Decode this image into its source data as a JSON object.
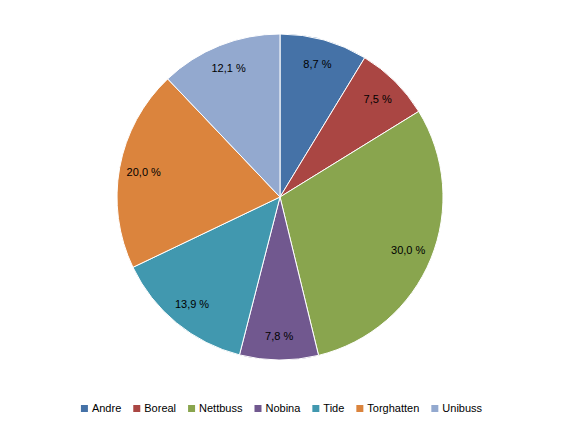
{
  "chart_data": {
    "type": "pie",
    "categories": [
      "Andre",
      "Boreal",
      "Nettbuss",
      "Nobina",
      "Tide",
      "Torghatten",
      "Unibuss"
    ],
    "values": [
      8.7,
      7.5,
      30.0,
      7.8,
      13.9,
      20.0,
      12.1
    ],
    "value_labels": [
      "8,7 %",
      "7,5 %",
      "30,0 %",
      "7,8 %",
      "13,9 %",
      "20,0 %",
      "12,1 %"
    ],
    "colors": [
      "#4572a7",
      "#aa4643",
      "#89a54e",
      "#71588f",
      "#4198af",
      "#db843d",
      "#93a9cf"
    ],
    "data_labels": true,
    "legend": "bottom"
  }
}
